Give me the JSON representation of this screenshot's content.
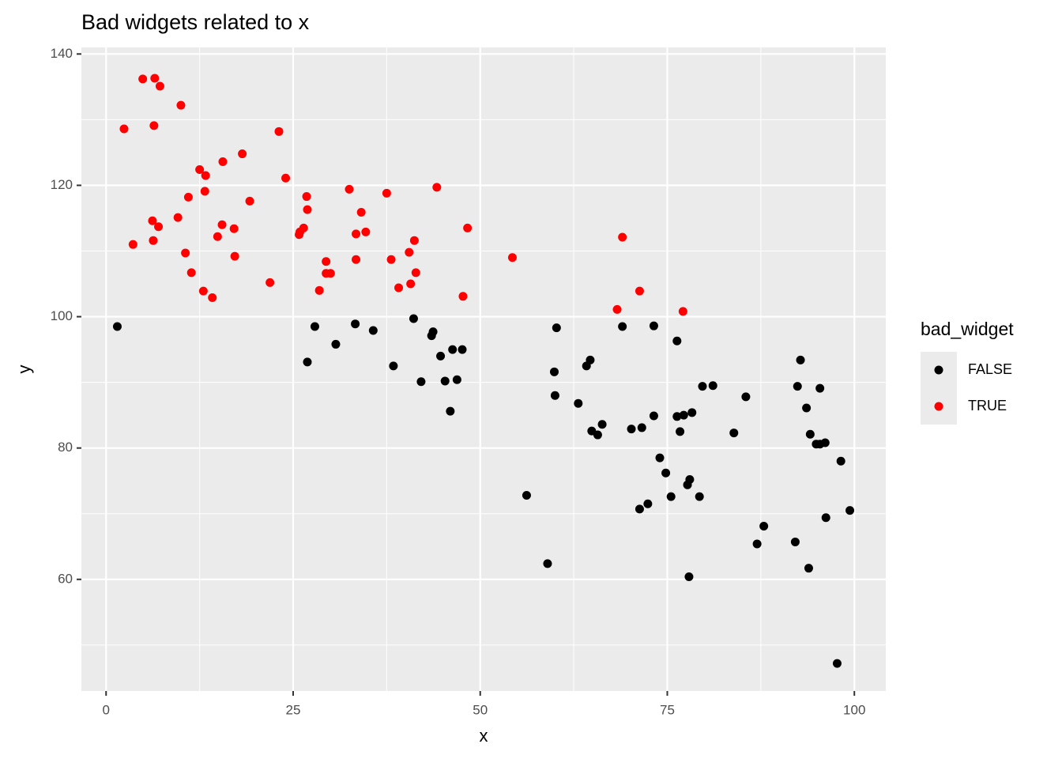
{
  "chart_data": {
    "type": "scatter",
    "title": "Bad widgets related to x",
    "x_label": "x",
    "y_label": "y",
    "legend_title": "bad_widget",
    "legend_position": "right",
    "grid": true,
    "xlim": [
      -3.3,
      104.2
    ],
    "ylim": [
      43.0,
      141.0
    ],
    "xticks": [
      0,
      25,
      50,
      75,
      100
    ],
    "yticks": [
      60,
      80,
      100,
      120,
      140
    ],
    "series": [
      {
        "name": "FALSE",
        "color": "#000000",
        "x": [
          1.5,
          26.9,
          27.9,
          30.7,
          33.3,
          35.7,
          38.4,
          41.1,
          42.1,
          43.5,
          43.7,
          44.7,
          45.3,
          46.0,
          46.3,
          46.9,
          47.6,
          56.2,
          59.0,
          59.9,
          60.0,
          60.2,
          63.1,
          64.2,
          64.7,
          64.9,
          65.7,
          66.3,
          69.0,
          70.2,
          71.6,
          71.3,
          72.4,
          73.2,
          73.2,
          74.0,
          74.8,
          75.5,
          76.3,
          76.3,
          77.2,
          76.7,
          78.3,
          78.0,
          77.7,
          79.3,
          77.9,
          79.7,
          81.1,
          83.9,
          85.5,
          87.0,
          87.9,
          92.1,
          92.4,
          92.8,
          93.6,
          93.9,
          94.1,
          94.9,
          95.4,
          95.4,
          96.1,
          96.2,
          97.7,
          98.2,
          99.4
        ],
        "y": [
          98.5,
          93.1,
          98.5,
          95.8,
          98.9,
          97.9,
          92.5,
          99.7,
          90.1,
          97.1,
          97.7,
          94.0,
          90.2,
          85.6,
          95.0,
          90.4,
          95.0,
          72.8,
          62.4,
          91.6,
          88.0,
          98.3,
          86.8,
          92.5,
          93.4,
          82.6,
          82.0,
          83.6,
          98.5,
          82.9,
          83.1,
          70.7,
          71.5,
          98.6,
          84.9,
          78.5,
          76.2,
          72.6,
          96.3,
          84.8,
          85.0,
          82.5,
          85.4,
          75.2,
          74.4,
          72.6,
          60.4,
          89.4,
          89.5,
          82.3,
          87.8,
          65.4,
          68.1,
          65.7,
          89.4,
          93.4,
          86.1,
          61.7,
          82.1,
          80.6,
          80.6,
          89.1,
          80.8,
          69.4,
          47.2,
          78.0,
          70.5
        ]
      },
      {
        "name": "TRUE",
        "color": "#ff0000",
        "x": [
          2.4,
          3.6,
          4.9,
          6.5,
          7.2,
          6.4,
          10.0,
          6.2,
          6.3,
          7.0,
          9.6,
          10.6,
          11.0,
          11.4,
          12.5,
          13.3,
          13.2,
          13.0,
          14.2,
          14.9,
          15.5,
          15.6,
          17.1,
          17.2,
          18.2,
          19.2,
          21.9,
          23.1,
          24.0,
          25.8,
          26.4,
          25.9,
          26.8,
          26.9,
          28.5,
          29.4,
          29.4,
          30.0,
          32.5,
          33.4,
          33.4,
          34.1,
          34.7,
          37.5,
          38.1,
          39.1,
          40.5,
          40.7,
          41.2,
          41.4,
          44.2,
          47.7,
          48.3,
          54.3,
          68.3,
          69.0,
          71.3,
          77.1
        ],
        "y": [
          128.6,
          111.0,
          136.2,
          136.3,
          135.1,
          129.1,
          132.2,
          114.6,
          111.6,
          113.7,
          115.1,
          109.7,
          118.2,
          106.7,
          122.4,
          121.5,
          119.1,
          103.9,
          102.9,
          112.2,
          114.0,
          123.6,
          113.4,
          109.2,
          124.8,
          117.6,
          105.2,
          128.2,
          121.1,
          112.5,
          113.5,
          112.9,
          118.3,
          116.3,
          104.0,
          108.4,
          106.6,
          106.6,
          119.4,
          112.6,
          108.7,
          115.9,
          112.9,
          118.8,
          108.7,
          104.4,
          109.8,
          105.0,
          111.6,
          106.7,
          119.7,
          103.1,
          113.5,
          109.0,
          101.1,
          112.1,
          103.9,
          100.8
        ]
      }
    ]
  }
}
